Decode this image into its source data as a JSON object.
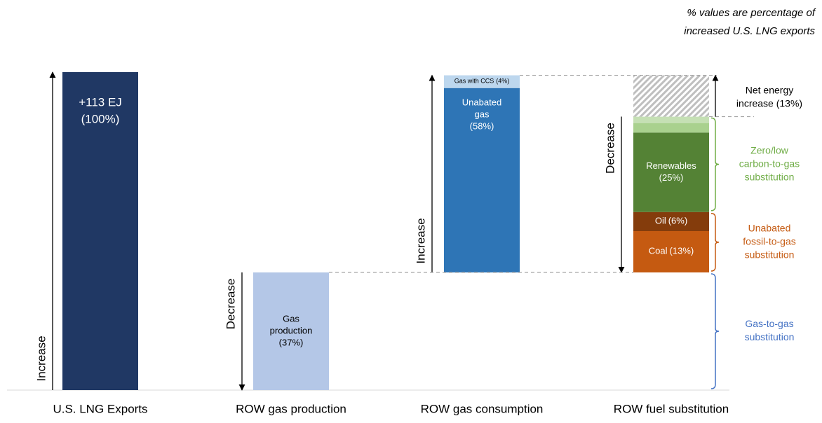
{
  "annotation_lines": [
    "% values are percentage of",
    "increased U.S. LNG exports"
  ],
  "chart_data": {
    "type": "waterfall",
    "categories": [
      "U.S. LNG Exports",
      "ROW gas production",
      "ROW gas consumption",
      "ROW fuel substitution"
    ],
    "arrow_labels": [
      "Increase",
      "Decrease",
      "Increase",
      "Decrease"
    ],
    "columns": [
      {
        "segments": [
          {
            "label_lines": [
              "+113 EJ"
            ],
            "value": 100,
            "value_label": "(100%)",
            "color": "#203864"
          }
        ]
      },
      {
        "segments": [
          {
            "label_lines": [
              "Gas",
              "production"
            ],
            "value": 37,
            "value_label": "(37%)",
            "color": "#b4c7e7"
          }
        ]
      },
      {
        "segments": [
          {
            "label_lines": [
              "Unabated",
              "gas"
            ],
            "value": 58,
            "value_label": "(58%)",
            "color": "#2e75b6"
          },
          {
            "label_lines": [
              "Gas with CCS"
            ],
            "value": 4,
            "value_label": "(4%)",
            "color": "#bdd7ee"
          }
        ]
      },
      {
        "segments": [
          {
            "label_lines": [
              "Coal"
            ],
            "value": 13,
            "value_label": "(13%)",
            "color": "#c55a11"
          },
          {
            "label_lines": [
              "Oil"
            ],
            "value": 6,
            "value_label": "(6%)",
            "color": "#843c0c"
          },
          {
            "label_lines": [
              "Renewables"
            ],
            "value": 25,
            "value_label": "(25%)",
            "color": "#548235"
          },
          {
            "value": 3,
            "color": "#a9d18e"
          },
          {
            "value": 2,
            "color": "#c5e0b4"
          },
          {
            "value": 13,
            "color": "#bfbfbf",
            "hatched": true
          }
        ]
      }
    ],
    "brackets": [
      {
        "label_lines": [
          "Net energy",
          "increase (13%)"
        ],
        "color": "#000000"
      },
      {
        "label_lines": [
          "Zero/low",
          "carbon-to-gas",
          "substitution"
        ],
        "color": "#70ad47"
      },
      {
        "label_lines": [
          "Unabated",
          "fossil-to-gas",
          "substitution"
        ],
        "color": "#c55a11"
      },
      {
        "label_lines": [
          "Gas-to-gas",
          "substitution"
        ],
        "color": "#4472c4"
      }
    ]
  }
}
